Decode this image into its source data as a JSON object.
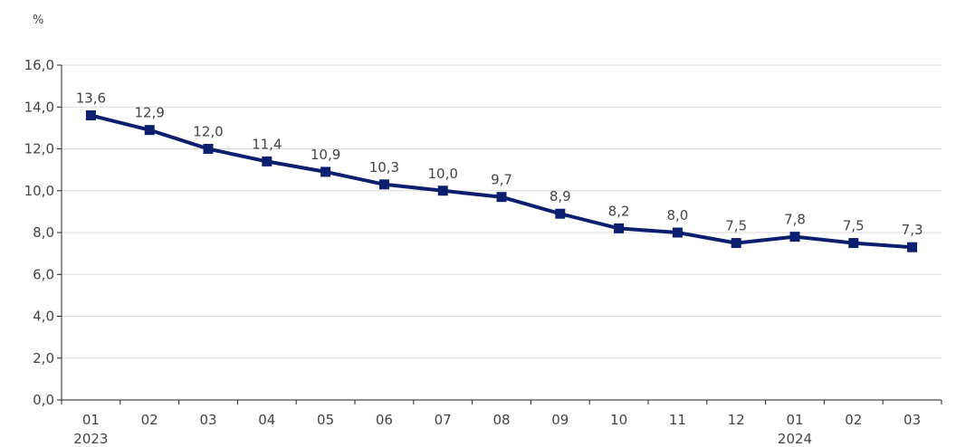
{
  "chart_data": {
    "type": "line",
    "unit": "%",
    "categories": [
      "01",
      "02",
      "03",
      "04",
      "05",
      "06",
      "07",
      "08",
      "09",
      "10",
      "11",
      "12",
      "01",
      "02",
      "03"
    ],
    "years": [
      {
        "label": "2023",
        "at_index": 0
      },
      {
        "label": "2024",
        "at_index": 12
      }
    ],
    "series": [
      {
        "values": [
          13.6,
          12.9,
          12.0,
          11.4,
          10.9,
          10.3,
          10.0,
          9.7,
          8.9,
          8.2,
          8.0,
          7.5,
          7.8,
          7.5,
          7.3
        ],
        "labels": [
          "13,6",
          "12,9",
          "12,0",
          "11,4",
          "10,9",
          "10,3",
          "10,0",
          "9,7",
          "8,9",
          "8,2",
          "8,0",
          "7,5",
          "7,8",
          "7,5",
          "7,3"
        ],
        "color": "#0b1f6e"
      }
    ],
    "ylim": [
      0,
      16
    ],
    "yticks": [
      0,
      2,
      4,
      6,
      8,
      10,
      12,
      14,
      16
    ],
    "ytick_labels": [
      "0,0",
      "2,0",
      "4,0",
      "6,0",
      "8,0",
      "10,0",
      "12,0",
      "14,0",
      "16,0"
    ],
    "grid": true,
    "grid_color": "#d9d9d9",
    "axis_color": "#222222",
    "legend": "none"
  }
}
